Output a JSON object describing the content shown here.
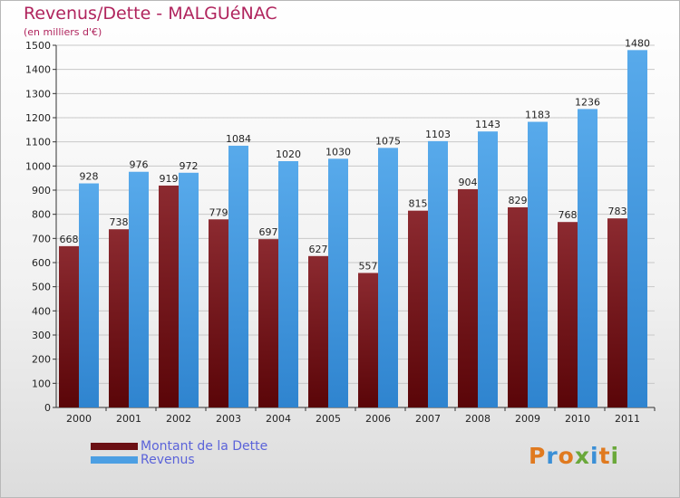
{
  "header": {
    "title": "Revenus/Dette - MALGUéNAC",
    "subtitle": "(en milliers d'€)"
  },
  "logo": {
    "text": "Proxiti"
  },
  "colors": {
    "debt": "#7a1f24",
    "revenue": "#4c9fe3",
    "axis": "#000000",
    "grid": "#c8c8c8",
    "title": "#b0245d",
    "legend_text": "#5b63d9"
  },
  "legend": [
    {
      "label": "Montant de la Dette",
      "color": "#6b0f13"
    },
    {
      "label": "Revenus",
      "color": "#4c9fe3"
    }
  ],
  "chart_data": {
    "type": "bar",
    "title": "Revenus/Dette - MALGUéNAC",
    "ylabel": "(en milliers d'€)",
    "categories": [
      "2000",
      "2001",
      "2002",
      "2003",
      "2004",
      "2005",
      "2006",
      "2007",
      "2008",
      "2009",
      "2010",
      "2011"
    ],
    "series": [
      {
        "name": "Montant de la Dette",
        "values": [
          668,
          738,
          919,
          779,
          697,
          627,
          557,
          815,
          904,
          829,
          768,
          783
        ]
      },
      {
        "name": "Revenus",
        "values": [
          928,
          976,
          972,
          1084,
          1020,
          1030,
          1075,
          1103,
          1143,
          1183,
          1236,
          1480
        ]
      }
    ],
    "ylim": [
      0,
      1500
    ],
    "yticks": [
      0,
      100,
      200,
      300,
      400,
      500,
      600,
      700,
      800,
      900,
      1000,
      1100,
      1200,
      1300,
      1400,
      1500
    ],
    "grid": true,
    "legend_position": "bottom-left"
  }
}
